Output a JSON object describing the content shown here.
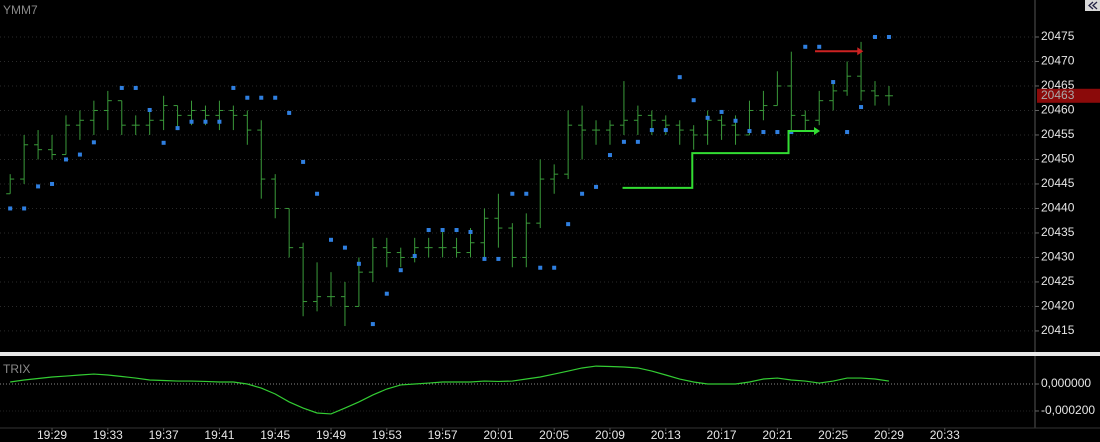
{
  "chart_data": [
    {
      "type": "ohlc",
      "title": "YMM7",
      "x": [
        1166,
        1167,
        1168,
        1169,
        1170,
        1171,
        1172,
        1173,
        1174,
        1175,
        1176,
        1177,
        1178,
        1179,
        1180,
        1181,
        1182,
        1183,
        1184,
        1185,
        1186,
        1187,
        1188,
        1189,
        1190,
        1191,
        1192,
        1193,
        1194,
        1195,
        1196,
        1197,
        1198,
        1199,
        1200,
        1201,
        1202,
        1203,
        1204,
        1205,
        1206,
        1207,
        1208,
        1209,
        1210,
        1211,
        1212,
        1213,
        1214,
        1215,
        1216,
        1217,
        1218,
        1219,
        1220,
        1221,
        1222,
        1223,
        1224,
        1225,
        1226,
        1227,
        1228,
        1229
      ],
      "open": [
        20443,
        20446,
        20453,
        20452,
        20451,
        20457,
        20458,
        20460,
        20462,
        20457,
        20457,
        20458,
        20461,
        20459,
        20460,
        20459,
        20460,
        20459,
        20456,
        20446,
        20440,
        20432,
        20421,
        20422,
        20422,
        20420,
        20427,
        20432,
        20431,
        20430,
        20432,
        20432,
        20432,
        20431,
        20433,
        20438,
        20436,
        20430,
        20437,
        20446,
        20447,
        20457,
        20456,
        20456,
        20457,
        20458,
        20459,
        20458,
        20457,
        20456,
        20455,
        20458,
        20457,
        20455,
        20460,
        20461,
        20465,
        20459,
        20458,
        20462,
        20464,
        20467,
        20464,
        20463
      ],
      "high": [
        20447,
        20455,
        20456,
        20455,
        20459,
        20460,
        20462,
        20464,
        20462,
        20459,
        20460,
        20463,
        20461,
        20462,
        20461,
        20462,
        20461,
        20460,
        20458,
        20447,
        20440,
        20433,
        20429,
        20427,
        20425,
        20430,
        20434,
        20434,
        20432,
        20434,
        20434,
        20436,
        20434,
        20436,
        20440,
        20443,
        20437,
        20439,
        20450,
        20449,
        20460,
        20461,
        20458,
        20458,
        20466,
        20461,
        20460,
        20459,
        20458,
        20457,
        20460,
        20459,
        20459,
        20462,
        20464,
        20468,
        20472,
        20460,
        20464,
        20466,
        20470,
        20474,
        20466,
        20465
      ],
      "low": [
        20443,
        20445,
        20450,
        20450,
        20451,
        20454,
        20455,
        20456,
        20455,
        20455,
        20455,
        20456,
        20456,
        20457,
        20457,
        20456,
        20456,
        20453,
        20442,
        20438,
        20430,
        20418,
        20419,
        20420,
        20416,
        20420,
        20425,
        20428,
        20428,
        20429,
        20430,
        20430,
        20430,
        20430,
        20430,
        20432,
        20428,
        20428,
        20436,
        20443,
        20446,
        20450,
        20453,
        20453,
        20455,
        20455,
        20455,
        20455,
        20453,
        20452,
        20453,
        20454,
        20453,
        20455,
        20458,
        20461,
        20456,
        20456,
        20457,
        20460,
        20463,
        20462,
        20461,
        20461
      ],
      "close": [
        20446,
        20453,
        20452,
        20451,
        20457,
        20458,
        20460,
        20462,
        20457,
        20457,
        20458,
        20461,
        20459,
        20460,
        20459,
        20460,
        20459,
        20456,
        20446,
        20440,
        20432,
        20421,
        20422,
        20422,
        20420,
        20427,
        20432,
        20431,
        20430,
        20432,
        20432,
        20432,
        20431,
        20433,
        20438,
        20436,
        20430,
        20437,
        20446,
        20447,
        20457,
        20456,
        20456,
        20457,
        20458,
        20459,
        20458,
        20457,
        20456,
        20455,
        20458,
        20457,
        20455,
        20460,
        20461,
        20465,
        20459,
        20458,
        20462,
        20464,
        20467,
        20464,
        20463,
        20463
      ],
      "bar_color": "#3a9a3a",
      "sar": {
        "color": "#2f7fe0",
        "values": [
          20440,
          20440,
          20444.5,
          20445,
          20450,
          20451,
          20453.5,
          null,
          20464.6,
          20464.6,
          20460.1,
          20453.4,
          20456.4,
          20457.7,
          20457.7,
          20457.7,
          20464.6,
          20462.6,
          20462.6,
          20462.6,
          20459.5,
          20449.5,
          20443,
          20433.6,
          20432,
          20428.7,
          20416.4,
          20422.6,
          20427.4,
          20430.3,
          20435.6,
          20435.6,
          20435.6,
          20435.2,
          20429.7,
          20429.7,
          20443,
          20443,
          20427.9,
          20427.9,
          20436.8,
          20443,
          20444.4,
          20450.9,
          20453.6,
          20453.6,
          20456,
          20456,
          20466.8,
          20462.1,
          20458.5,
          20459.7,
          20457.9,
          20455.8,
          20455.6,
          20455.6,
          20455.6,
          20473,
          20473,
          20465.8,
          20455.6,
          20460.7,
          20475,
          20475
        ]
      },
      "stops": [
        {
          "color": "#33dd33",
          "x": [
            1209.9,
            1214.9,
            1214.9,
            1221.8,
            1221.8,
            1223.7
          ],
          "values": [
            20444.2,
            20444.2,
            20451.3,
            20451.3,
            20455.8,
            20455.8
          ]
        },
        {
          "color": "#cc2222",
          "x": [
            1223.7,
            1226.8
          ],
          "values": [
            20472.1,
            20472.1
          ]
        }
      ],
      "last_price": 20463,
      "last_price_color": "#8b0a0a",
      "xlim": [
        1165.27,
        1239.47
      ],
      "ylim": [
        20410.7,
        20482.55
      ],
      "yticks": [
        20415,
        20420,
        20425,
        20430,
        20435,
        20440,
        20445,
        20450,
        20455,
        20460,
        20465,
        20470,
        20475
      ],
      "grid": true
    },
    {
      "type": "line",
      "title": "TRIX",
      "x": [
        1166,
        1167,
        1168,
        1169,
        1170,
        1171,
        1172,
        1173,
        1174,
        1175,
        1176,
        1177,
        1178,
        1179,
        1180,
        1181,
        1182,
        1183,
        1184,
        1185,
        1186,
        1187,
        1188,
        1189,
        1190,
        1191,
        1192,
        1193,
        1194,
        1195,
        1196,
        1197,
        1198,
        1199,
        1200,
        1201,
        1202,
        1203,
        1204,
        1205,
        1206,
        1207,
        1208,
        1209,
        1210,
        1211,
        1212,
        1213,
        1214,
        1215,
        1216,
        1217,
        1218,
        1219,
        1220,
        1221,
        1222,
        1223,
        1224,
        1225,
        1226,
        1227,
        1228,
        1229
      ],
      "values": [
        1.5e-05,
        3e-05,
        4.1e-05,
        5.2e-05,
        5.9e-05,
        6.7e-05,
        7.4e-05,
        6.7e-05,
        5.6e-05,
        4.4e-05,
        3e-05,
        2.6e-05,
        2.2e-05,
        2.2e-05,
        1.9e-05,
        1.5e-05,
        1.5e-05,
        0,
        -3e-05,
        -7.4e-05,
        -0.000133,
        -0.000178,
        -0.000215,
        -0.000222,
        -0.000178,
        -0.000133,
        -8.1e-05,
        -3.7e-05,
        -7e-06,
        0,
        7e-06,
        1.5e-05,
        1.5e-05,
        1.5e-05,
        2.2e-05,
        1.9e-05,
        2.2e-05,
        3.7e-05,
        5.2e-05,
        7.4e-05,
        9.6e-05,
        0.000119,
        0.000133,
        0.00013,
        0.000126,
        0.000119,
        9.6e-05,
        6.7e-05,
        3.7e-05,
        1.5e-05,
        0,
        0,
        0,
        1.5e-05,
        3.7e-05,
        4.4e-05,
        3e-05,
        2.2e-05,
        7e-06,
        2.2e-05,
        4.4e-05,
        4.4e-05,
        3.7e-05,
        2.2e-05
      ],
      "color": "#33cc33",
      "xlim": [
        1165.27,
        1239.47
      ],
      "ylim": [
        -0.000304,
        0.000193
      ],
      "yticks": [
        {
          "value": 0,
          "label": "0,000000"
        },
        {
          "value": -0.0002,
          "label": "-0,000200"
        }
      ],
      "xticks": [
        {
          "value": 1169,
          "label": "19:29"
        },
        {
          "value": 1173,
          "label": "19:33"
        },
        {
          "value": 1177,
          "label": "19:37"
        },
        {
          "value": 1181,
          "label": "19:41"
        },
        {
          "value": 1185,
          "label": "19:45"
        },
        {
          "value": 1189,
          "label": "19:49"
        },
        {
          "value": 1193,
          "label": "19:53"
        },
        {
          "value": 1197,
          "label": "19:57"
        },
        {
          "value": 1201,
          "label": "20:01"
        },
        {
          "value": 1205,
          "label": "20:05"
        },
        {
          "value": 1209,
          "label": "20:09"
        },
        {
          "value": 1213,
          "label": "20:13"
        },
        {
          "value": 1217,
          "label": "20:17"
        },
        {
          "value": 1221,
          "label": "20:21"
        },
        {
          "value": 1225,
          "label": "20:25"
        },
        {
          "value": 1229,
          "label": "20:29"
        },
        {
          "value": 1233,
          "label": "20:33"
        }
      ],
      "grid": true
    }
  ]
}
